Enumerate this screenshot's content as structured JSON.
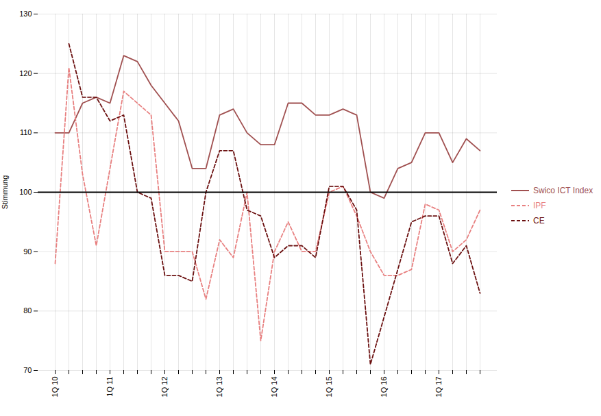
{
  "chart_data": {
    "type": "line",
    "ylabel": "Stimmung",
    "categories": [
      "1Q 10",
      null,
      null,
      null,
      "1Q 11",
      null,
      null,
      null,
      "1Q 12",
      null,
      null,
      null,
      "1Q 13",
      null,
      null,
      null,
      "1Q 14",
      null,
      null,
      null,
      "1Q 15",
      null,
      null,
      null,
      "1Q 16",
      null,
      null,
      null,
      "1Q 17",
      null,
      null,
      null
    ],
    "series": [
      {
        "name": "Swico ICT Index",
        "color": "#a05050",
        "line_style": "solid",
        "values": [
          110,
          110,
          115,
          116,
          115,
          123,
          122,
          118,
          115,
          112,
          104,
          104,
          113,
          114,
          110,
          108,
          108,
          115,
          115,
          113,
          113,
          114,
          113,
          100,
          99,
          104,
          105,
          110,
          110,
          105,
          109,
          107
        ]
      },
      {
        "name": "IPF",
        "color": "#e88080",
        "line_style": "dashed",
        "values": [
          88,
          121,
          103,
          91,
          104,
          117,
          115,
          113,
          90,
          90,
          90,
          82,
          92,
          89,
          100,
          75,
          90,
          95,
          90,
          90,
          100,
          101,
          96,
          90,
          86,
          86,
          87,
          98,
          97,
          90,
          92,
          97
        ]
      },
      {
        "name": "CE",
        "color": "#6b1010",
        "line_style": "dashed",
        "values": [
          null,
          125,
          116,
          116,
          112,
          113,
          100,
          99,
          86,
          86,
          85,
          100,
          107,
          107,
          97,
          96,
          89,
          91,
          91,
          89,
          101,
          101,
          97,
          71,
          79,
          87,
          95,
          96,
          96,
          88,
          91,
          83
        ]
      }
    ],
    "ylim": [
      70,
      130
    ],
    "yticks": [
      70,
      80,
      90,
      100,
      110,
      120,
      130
    ],
    "grid": true,
    "legend": "right",
    "reference_line": 100
  }
}
